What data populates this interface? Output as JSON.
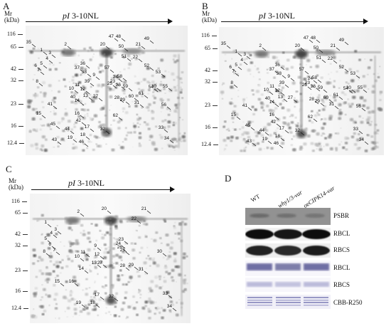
{
  "panels": [
    {
      "letter": "A",
      "gradient_pi": "pI",
      "gradient_range": "3-10NL",
      "mr_label": "Mr\n(kDa)",
      "spots": [
        "1",
        "2",
        "3",
        "4",
        "5",
        "6",
        "7",
        "8",
        "9",
        "10",
        "11",
        "12",
        "13",
        "14",
        "15",
        "16",
        "17",
        "18",
        "19",
        "20",
        "21",
        "22",
        "23",
        "24",
        "25",
        "26",
        "27",
        "28",
        "29",
        "30",
        "31",
        "32",
        "33",
        "34",
        "35",
        "36",
        "37",
        "38",
        "39",
        "40",
        "41",
        "42",
        "43",
        "44",
        "45",
        "46",
        "47",
        "48",
        "49",
        "50",
        "51",
        "52",
        "53",
        "54",
        "55",
        "56",
        "57",
        "58",
        "59",
        "60",
        "61",
        "62"
      ]
    },
    {
      "letter": "B",
      "gradient_pi": "pI",
      "gradient_range": "3-10NL",
      "mr_label": "Mr\n(kDa)",
      "spots": [
        "1",
        "2",
        "3",
        "4",
        "5",
        "6",
        "7",
        "8",
        "9",
        "10",
        "11",
        "12",
        "13",
        "14",
        "15",
        "16",
        "17",
        "18",
        "19",
        "20",
        "21",
        "22",
        "23",
        "24",
        "25",
        "26",
        "27",
        "28",
        "29",
        "30",
        "31",
        "32",
        "33",
        "34",
        "35",
        "36",
        "37",
        "38",
        "39",
        "40",
        "41",
        "42",
        "43",
        "44",
        "45",
        "46",
        "47",
        "48",
        "49",
        "50",
        "51",
        "52",
        "53",
        "54",
        "55",
        "56",
        "57",
        "58",
        "59",
        "60",
        "61",
        "62"
      ]
    },
    {
      "letter": "C",
      "gradient_pi": "pI",
      "gradient_range": "3-10NL",
      "mr_label": "Mr\n(kDa)",
      "spots": [
        "1",
        "2",
        "3",
        "4",
        "5",
        "6",
        "7",
        "8",
        "9",
        "10",
        "11",
        "12",
        "13",
        "14",
        "15",
        "16",
        "17",
        "18",
        "19",
        "20",
        "21",
        "22",
        "23",
        "24",
        "25",
        "26",
        "27",
        "28",
        "29",
        "30",
        "31",
        "32",
        "33",
        "34"
      ]
    }
  ],
  "mr_markers": [
    "116",
    "65",
    "42",
    "32",
    "23",
    "16",
    "12.4"
  ],
  "panel_d": {
    "letter": "D",
    "lanes": [
      {
        "prefix": "WT",
        "italic": "",
        "suffix": ""
      },
      {
        "prefix": "",
        "italic": "why1/3-var",
        "suffix": ""
      },
      {
        "prefix": "oe",
        "italic": "CIPK14-var",
        "suffix": ""
      }
    ],
    "rows": [
      "PSBR",
      "RBCL",
      "RBCS",
      "RBCL",
      "RBCS",
      "CBB-R250"
    ]
  }
}
